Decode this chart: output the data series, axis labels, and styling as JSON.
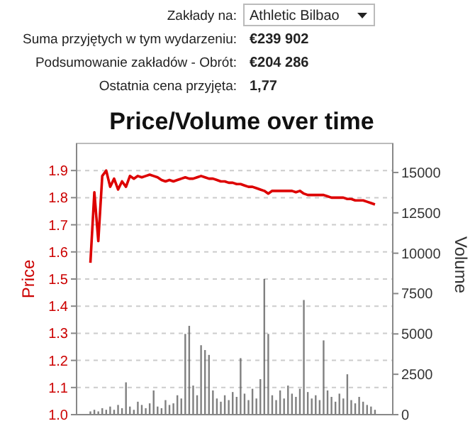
{
  "chart_data": {
    "type": "line",
    "title": "Price/Volume over time",
    "annotations": [
      "Zakłady na:",
      "Athletic Bilbao",
      "Suma przyjętych w tym wydarzeniu:",
      "€239 902",
      "Podsumowanie zakładów - Obrót:",
      "€204 286",
      "Ostatnia cena przyjęta:",
      "1,77"
    ],
    "ylabel": "Price",
    "y2label": "Volume",
    "categories": [
      null,
      null,
      null,
      null,
      null,
      null,
      null,
      null,
      null,
      null,
      null,
      null,
      null,
      null,
      null,
      null,
      null,
      null,
      null,
      null,
      null,
      null,
      null,
      null,
      null,
      null,
      null,
      null,
      null,
      null,
      null,
      null,
      null,
      null,
      null,
      null,
      null,
      null,
      null,
      null,
      null,
      null,
      null,
      null,
      null,
      null,
      null,
      null,
      null,
      null,
      null,
      null,
      null,
      null,
      null,
      null,
      null,
      null,
      null,
      null,
      null,
      null,
      null,
      null,
      null,
      null,
      null,
      null,
      null,
      null,
      null,
      null,
      null,
      null,
      null,
      null,
      null,
      null,
      null,
      null
    ],
    "series": [
      {
        "type": "bar",
        "axis": "y2",
        "color": "#555555",
        "values": [
          0,
          0,
          0,
          200,
          300,
          200,
          400,
          300,
          500,
          300,
          600,
          400,
          2000,
          500,
          300,
          800,
          600,
          400,
          700,
          1500,
          500,
          400,
          900,
          600,
          700,
          1200,
          1000,
          5000,
          5500,
          1800,
          1200,
          4300,
          4000,
          3700,
          1500,
          1000,
          800,
          1200,
          900,
          1400,
          1100,
          3500,
          1300,
          900,
          1600,
          1000,
          2200,
          8400,
          5000,
          1200,
          900,
          1500,
          1000,
          1800,
          1300,
          1100,
          1600,
          7100,
          1400,
          1000,
          1200,
          900,
          4600,
          1500,
          1100,
          800,
          1300,
          1000,
          2500,
          900,
          700,
          1100,
          800,
          600,
          500,
          300,
          0,
          0,
          0,
          0
        ]
      },
      {
        "axis": "y",
        "color": "#dd0000",
        "values": [
          null,
          null,
          null,
          1.56,
          1.82,
          1.64,
          1.88,
          1.9,
          1.84,
          1.87,
          1.83,
          1.86,
          1.84,
          1.88,
          1.87,
          1.88,
          1.875,
          1.88,
          1.885,
          1.88,
          1.875,
          1.865,
          1.86,
          1.865,
          1.86,
          1.865,
          1.87,
          1.875,
          1.87,
          1.87,
          1.875,
          1.88,
          1.875,
          1.87,
          1.87,
          1.865,
          1.86,
          1.86,
          1.855,
          1.855,
          1.85,
          1.85,
          1.845,
          1.84,
          1.84,
          1.835,
          1.83,
          1.825,
          1.815,
          1.825,
          1.825,
          1.825,
          1.825,
          1.825,
          1.825,
          1.82,
          1.825,
          1.815,
          1.81,
          1.81,
          1.81,
          1.81,
          1.81,
          1.805,
          1.8,
          1.8,
          1.8,
          1.8,
          1.795,
          1.795,
          1.79,
          1.79,
          1.79,
          1.785,
          1.78,
          1.775,
          null,
          null,
          null,
          null
        ]
      }
    ],
    "ylim": [
      1.0,
      2.0
    ],
    "yticks": [
      {
        "value": 1,
        "label": "1.0"
      },
      1.1,
      1.2,
      1.3,
      1.4,
      1.5,
      1.6,
      1.7,
      1.8,
      1.9
    ],
    "y2lim": [
      0,
      16800
    ],
    "y2ticks": [
      0,
      2500,
      5000,
      7500,
      10000,
      12500,
      15000
    ],
    "grid": "y"
  }
}
